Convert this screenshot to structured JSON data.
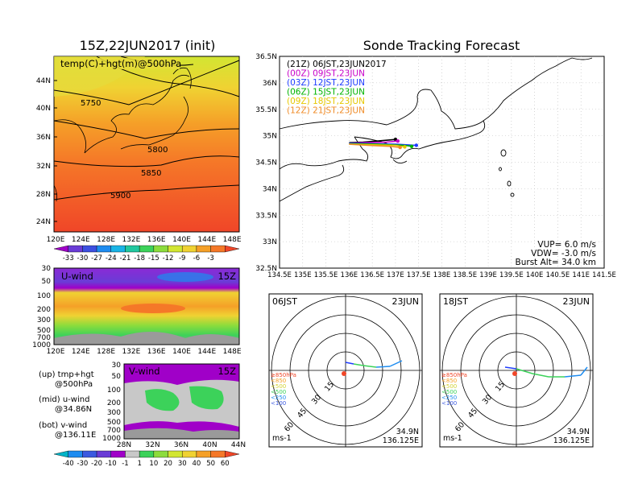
{
  "left_title": "15Z,22JUN2017 (init)",
  "right_title": "Sonde Tracking Forecast",
  "map500": {
    "label": "temp(C)+hgt(m)@500hPa",
    "lat_ticks": [
      "44N",
      "40N",
      "36N",
      "32N",
      "28N",
      "24N"
    ],
    "lon_ticks": [
      "120E",
      "124E",
      "128E",
      "132E",
      "136E",
      "140E",
      "144E",
      "148E"
    ],
    "contour_labels": [
      "5750",
      "5800",
      "5850",
      "5900"
    ],
    "colorbar_ticks": [
      "-33",
      "-30",
      "-27",
      "-24",
      "-21",
      "-18",
      "-15",
      "-12",
      "-9",
      "-6",
      "-3"
    ],
    "colorbar_colors": [
      "#a000c8",
      "#6a3cd6",
      "#3c4fe0",
      "#1e8cf0",
      "#19b4e6",
      "#21c8a0",
      "#3cd25a",
      "#8cdc3c",
      "#d2e632",
      "#f0d232",
      "#f5a028",
      "#f57828",
      "#f04628"
    ]
  },
  "uwind": {
    "label": "U-wind",
    "time": "15Z",
    "p_ticks": [
      "30",
      "50",
      "100",
      "200",
      "300",
      "500",
      "700",
      "1000"
    ],
    "lon_ticks": [
      "120E",
      "124E",
      "128E",
      "132E",
      "136E",
      "140E",
      "144E",
      "148E"
    ]
  },
  "vwind": {
    "label": "V-wind",
    "time": "15Z",
    "p_ticks": [
      "30",
      "50",
      "100",
      "200",
      "300",
      "500",
      "700",
      "1000"
    ],
    "lat_ticks": [
      "28N",
      "32N",
      "36N",
      "40N",
      "44N"
    ]
  },
  "legend_text": {
    "up": "(up) tmp+hgt",
    "up2": "@500hPa",
    "mid": "(mid) u-wind",
    "mid2": "@34.86N",
    "bot": "(bot) v-wind",
    "bot2": "@136.11E"
  },
  "wind_colorbar": {
    "ticks": [
      "-40",
      "-30",
      "-20",
      "-10",
      "-1",
      "1",
      "10",
      "20",
      "30",
      "40",
      "50",
      "60"
    ],
    "colors": [
      "#00b4c8",
      "#1e8cf0",
      "#3c5ae0",
      "#6a3cd6",
      "#a000c8",
      "#c8c8c8",
      "#3cd25a",
      "#8cdc3c",
      "#d2e632",
      "#f0d232",
      "#f5a028",
      "#f57828",
      "#f04628"
    ]
  },
  "track": {
    "lat_ticks": [
      "36.5N",
      "36N",
      "35.5N",
      "35N",
      "34.5N",
      "34N",
      "33.5N",
      "33N",
      "32.5N"
    ],
    "lon_ticks": [
      "134.5E",
      "135E",
      "135.5E",
      "136E",
      "136.5E",
      "137E",
      "137.5E",
      "138E",
      "138.5E",
      "139E",
      "139.5E",
      "140E",
      "140.5E",
      "141E",
      "141.5E"
    ],
    "legend": [
      {
        "text": "(21Z)  06JST,23JUN2017",
        "color": "#000000"
      },
      {
        "text": "(00Z)  09JST,23JUN",
        "color": "#c800c8"
      },
      {
        "text": "(03Z)  12JST,23JUN",
        "color": "#1e3cff"
      },
      {
        "text": "(06Z)  15JST,23JUN",
        "color": "#00b400"
      },
      {
        "text": "(09Z)  18JST,23JUN",
        "color": "#e6c800"
      },
      {
        "text": "(12Z)  21JST,23JUN",
        "color": "#f08c28"
      }
    ],
    "vup": "VUP=  6.0  m/s",
    "vdw": "VDW=  -3.0  m/s",
    "burst": "Burst Alt=  34.0  km"
  },
  "polar": [
    {
      "time": "06JST",
      "date": "23JUN",
      "lat": "34.9N",
      "lon": "136.125E",
      "unit": "ms-1",
      "ring_labels": [
        "15",
        "30",
        "45",
        "60"
      ],
      "pressure_legend": [
        {
          "text": "≥850hPa",
          "color": "#f04628"
        },
        {
          "text": "<850",
          "color": "#f5a028"
        },
        {
          "text": "<500",
          "color": "#d2d232"
        },
        {
          "text": "<500",
          "color": "#3cd25a"
        },
        {
          "text": "<250",
          "color": "#1e8cf0"
        },
        {
          "text": "<100",
          "color": "#3c5ae0"
        }
      ]
    },
    {
      "time": "18JST",
      "date": "23JUN",
      "lat": "34.9N",
      "lon": "136.125E",
      "unit": "ms-1",
      "ring_labels": [
        "15",
        "30",
        "45",
        "60"
      ],
      "pressure_legend": [
        {
          "text": "≥850hPa",
          "color": "#f04628"
        },
        {
          "text": "<850",
          "color": "#f5a028"
        },
        {
          "text": "<500",
          "color": "#d2d232"
        },
        {
          "text": "<500",
          "color": "#3cd25a"
        },
        {
          "text": "<250",
          "color": "#1e8cf0"
        },
        {
          "text": "<100",
          "color": "#3c5ae0"
        }
      ]
    }
  ],
  "chart_data": [
    {
      "type": "heatmap",
      "title": "15Z,22JUN2017 (init)",
      "subtitle": "temp(C)+hgt(m)@500hPa",
      "x_range": [
        120,
        149
      ],
      "y_range": [
        22,
        47
      ],
      "contours": [
        5750,
        5800,
        5850,
        5900
      ]
    },
    {
      "type": "heatmap",
      "title": "U-wind",
      "ylabel": "hPa",
      "p_levels": [
        30,
        50,
        100,
        200,
        300,
        500,
        700,
        1000
      ]
    },
    {
      "type": "heatmap",
      "title": "V-wind",
      "p_levels": [
        30,
        50,
        100,
        200,
        300,
        500,
        700,
        1000
      ]
    },
    {
      "type": "line",
      "title": "Sonde Tracking Forecast",
      "xlim": [
        134.5,
        141.5
      ],
      "ylim": [
        32.5,
        36.5
      ],
      "series": [
        {
          "name": "(21Z)  06JST,23JUN2017",
          "x": [
            136.0,
            136.3,
            136.6,
            136.85,
            137.0
          ],
          "y": [
            34.87,
            34.88,
            34.9,
            34.92,
            34.93
          ]
        },
        {
          "name": "(00Z)  09JST,23JUN",
          "x": [
            136.0,
            136.4,
            136.8,
            137.05
          ],
          "y": [
            34.86,
            34.87,
            34.88,
            34.9
          ]
        },
        {
          "name": "(03Z)  12JST,23JUN",
          "x": [
            136.0,
            136.5,
            137.0,
            137.45
          ],
          "y": [
            34.86,
            34.85,
            34.84,
            34.82
          ]
        },
        {
          "name": "(06Z)  15JST,23JUN",
          "x": [
            136.0,
            136.6,
            137.2,
            137.35
          ],
          "y": [
            34.85,
            34.84,
            34.82,
            34.8
          ]
        },
        {
          "name": "(09Z)  18JST,23JUN",
          "x": [
            136.0,
            136.5,
            137.0,
            137.2
          ],
          "y": [
            34.84,
            34.83,
            34.82,
            34.79
          ]
        },
        {
          "name": "(12Z)  21JST,23JUN",
          "x": [
            136.0,
            136.4,
            136.9,
            137.1
          ],
          "y": [
            34.84,
            34.82,
            34.8,
            34.78
          ]
        }
      ]
    }
  ]
}
